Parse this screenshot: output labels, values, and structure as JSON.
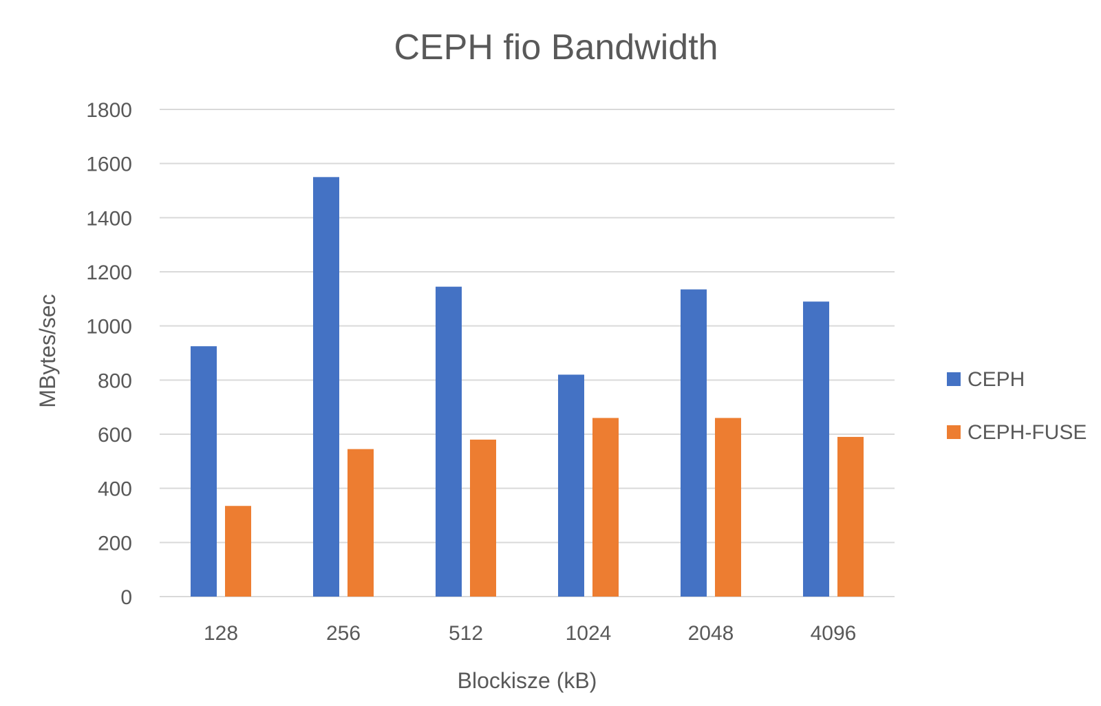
{
  "chart_data": {
    "type": "bar",
    "title": "CEPH fio Bandwidth",
    "xlabel": "Blockisze (kB)",
    "ylabel": "MBytes/sec",
    "categories": [
      "128",
      "256",
      "512",
      "1024",
      "2048",
      "4096"
    ],
    "series": [
      {
        "name": "CEPH",
        "values": [
          925,
          1550,
          1145,
          820,
          1135,
          1090
        ],
        "color": "#4472c4"
      },
      {
        "name": "CEPH-FUSE",
        "values": [
          335,
          545,
          580,
          660,
          660,
          590
        ],
        "color": "#ed7d31"
      }
    ],
    "ylim": [
      0,
      1800
    ],
    "yticks": [
      0,
      200,
      400,
      600,
      800,
      1000,
      1200,
      1400,
      1600,
      1800
    ],
    "grid": true,
    "legend_position": "right"
  }
}
